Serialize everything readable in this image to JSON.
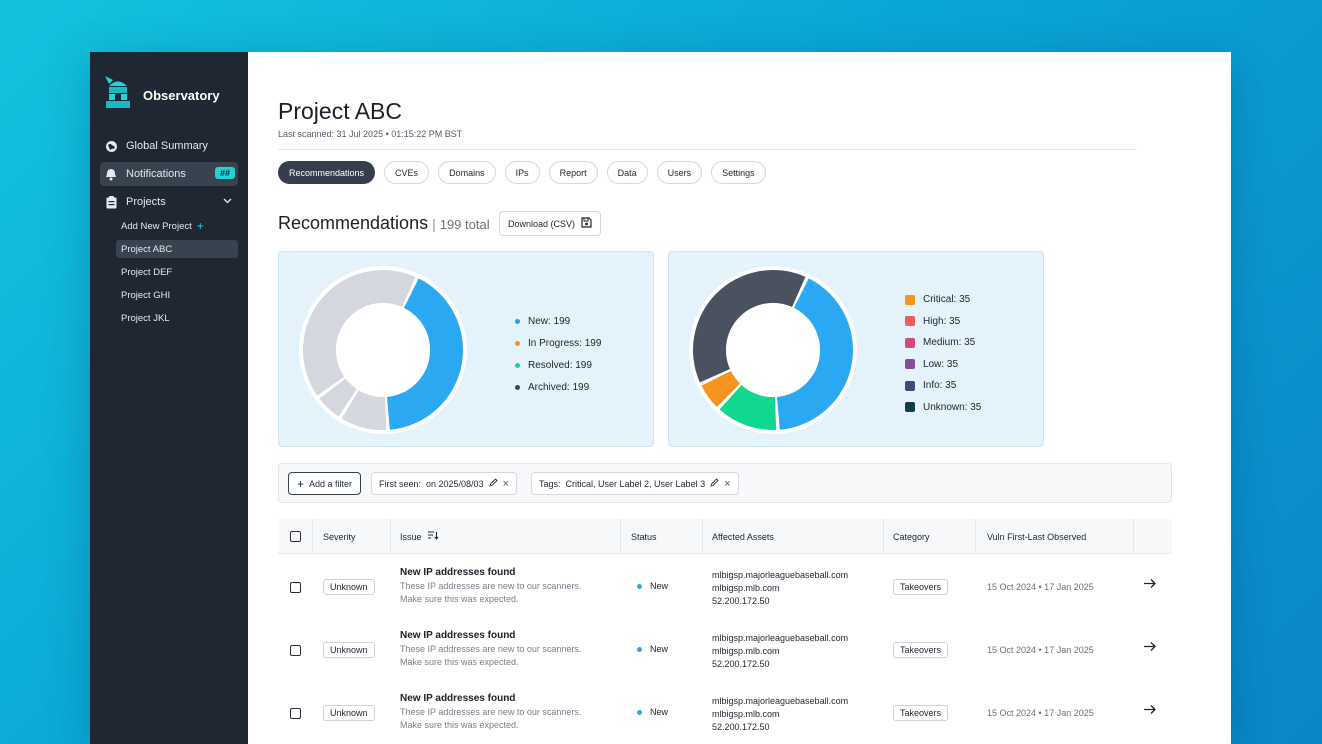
{
  "app": {
    "name": "Observatory"
  },
  "sidebar": {
    "items": [
      {
        "label": "Global Summary",
        "icon": "globe-icon"
      },
      {
        "label": "Notifications",
        "icon": "bell-icon",
        "badge": "##"
      },
      {
        "label": "Projects",
        "icon": "clipboard-icon"
      }
    ],
    "projects": [
      {
        "label": "Add New Project"
      },
      {
        "label": "Project ABC"
      },
      {
        "label": "Project DEF"
      },
      {
        "label": "Project GHI"
      },
      {
        "label": "Project JKL"
      }
    ]
  },
  "page": {
    "title": "Project ABC",
    "last_scanned": "Last scanned: 31 Jul 2025 • 01:15:22 PM BST"
  },
  "tabs": [
    "Recommendations",
    "CVEs",
    "Domains",
    "IPs",
    "Report",
    "Data",
    "Users",
    "Settings"
  ],
  "section": {
    "title": "Recommendations",
    "separator": "|",
    "count": "199 total",
    "download_label": "Download (CSV)"
  },
  "status_legend": [
    {
      "label": "New: 199",
      "color": "#1da1f2"
    },
    {
      "label": "In Progress: 199",
      "color": "#f7941d"
    },
    {
      "label": "Resolved: 199",
      "color": "#10d49a"
    },
    {
      "label": "Archived: 199",
      "color": "#3d4450"
    }
  ],
  "severity_legend": [
    {
      "label": "Critical: 35",
      "color": "#f7941d"
    },
    {
      "label": "High: 35",
      "color": "#f05d5d"
    },
    {
      "label": "Medium: 35",
      "color": "#d14a7a"
    },
    {
      "label": "Low: 35",
      "color": "#8a4a9a"
    },
    {
      "label": "Info: 35",
      "color": "#3f4a78"
    },
    {
      "label": "Unknown: 35",
      "color": "#0f3a4a"
    }
  ],
  "chart_data": [
    {
      "type": "pie",
      "series": [
        {
          "values": [
            0.42,
            0.1,
            0.06,
            0.42
          ]
        }
      ],
      "colors": [
        "#2aa8f2",
        "#d4d7dd",
        "#d4d7dd",
        "#d4d7dd"
      ]
    },
    {
      "type": "pie",
      "series": [
        {
          "values": [
            0.42,
            0.13,
            0.06,
            0.39
          ]
        }
      ],
      "colors": [
        "#2aa8f2",
        "#10d98f",
        "#f7941d",
        "#4a5260"
      ]
    }
  ],
  "filters": {
    "add_label": "Add a filter",
    "chips": [
      {
        "label": "First seen:",
        "value": "on 2025/08/03"
      },
      {
        "label": "Tags:",
        "value": "Critical, User Label 2, User Label 3"
      }
    ]
  },
  "table": {
    "headers": [
      "Severity",
      "Issue",
      "Status",
      "Affected Assets",
      "Category",
      "Vuln First-Last Observed"
    ],
    "rows": [
      {
        "severity": "Unknown",
        "issue_title": "New IP addresses found",
        "issue_desc_1": "These IP addresses are new to our scanners.",
        "issue_desc_2": "Make sure this was expected.",
        "status": "New",
        "asset_1": "mlbigsp.majorleaguebaseball.com",
        "asset_2": "mlbigsp.mlb.com",
        "asset_3": "52.200.172.50",
        "category": "Takeovers",
        "observed": "15 Oct 2024 • 17 Jan 2025"
      },
      {
        "severity": "Unknown",
        "issue_title": "New IP addresses found",
        "issue_desc_1": "These IP addresses are new to our scanners.",
        "issue_desc_2": "Make sure this was expected.",
        "status": "New",
        "asset_1": "mlbigsp.majorleaguebaseball.com",
        "asset_2": "mlbigsp.mlb.com",
        "asset_3": "52.200.172.50",
        "category": "Takeovers",
        "observed": "15 Oct 2024 • 17 Jan 2025"
      },
      {
        "severity": "Unknown",
        "issue_title": "New IP addresses found",
        "issue_desc_1": "These IP addresses are new to our scanners.",
        "issue_desc_2": "Make sure this was expected.",
        "status": "New",
        "asset_1": "mlbigsp.majorleaguebaseball.com",
        "asset_2": "mlbigsp.mlb.com",
        "asset_3": "52.200.172.50",
        "category": "Takeovers",
        "observed": "15 Oct 2024 • 17 Jan 2025"
      }
    ]
  }
}
